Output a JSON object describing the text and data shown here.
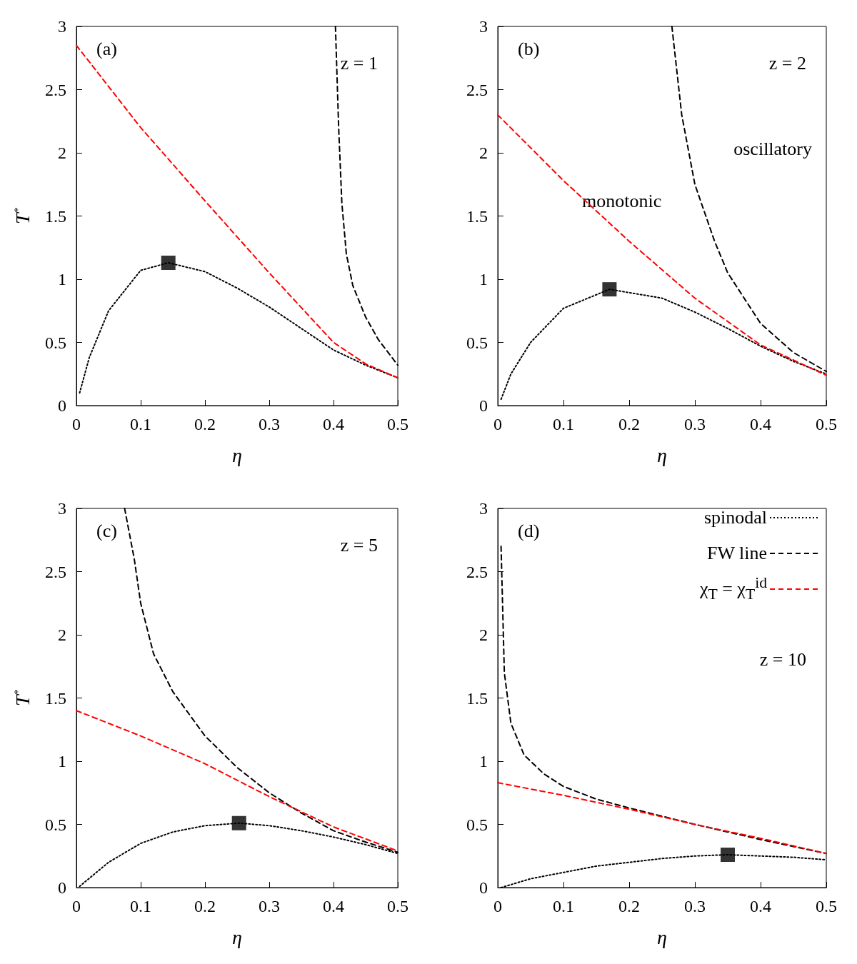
{
  "chart_data": [
    {
      "type": "line",
      "xlabel": "η",
      "ylabel": "T$^{*}$",
      "xlim": [
        0,
        0.5
      ],
      "ylim": [
        0,
        3
      ],
      "xticks": [
        0,
        0.1,
        0.2,
        0.3,
        0.4,
        0.5
      ],
      "yticks": [
        0,
        0.5,
        1,
        1.5,
        2,
        2.5,
        3
      ],
      "grid": false,
      "legend": false,
      "annotations": [
        "(a)",
        "z = 1"
      ],
      "series": [
        {
          "color": "#000000",
          "line_style": "dotted",
          "x": [
            0.005,
            0.02,
            0.05,
            0.1,
            0.143,
            0.2,
            0.25,
            0.3,
            0.35,
            0.4,
            0.45,
            0.5
          ],
          "values": [
            0.1,
            0.38,
            0.75,
            1.07,
            1.13,
            1.06,
            0.93,
            0.78,
            0.61,
            0.44,
            0.32,
            0.22
          ]
        },
        {
          "color": "#000000",
          "line_style": "dashed",
          "x": [
            0.403,
            0.408,
            0.413,
            0.42,
            0.43,
            0.45,
            0.47,
            0.5
          ],
          "values": [
            3,
            2.2,
            1.6,
            1.2,
            0.95,
            0.7,
            0.52,
            0.32
          ]
        },
        {
          "color": "#ff0000",
          "line_style": "dashed",
          "x": [
            0,
            0.1,
            0.2,
            0.3,
            0.4,
            0.45,
            0.5
          ],
          "values": [
            2.85,
            2.2,
            1.62,
            1.05,
            0.5,
            0.33,
            0.22
          ]
        },
        {
          "type": "scatter",
          "marker": "square",
          "color": "#000000",
          "x": [
            0.143
          ],
          "values": [
            1.13
          ]
        }
      ]
    },
    {
      "type": "line",
      "xlabel": "η",
      "xlim": [
        0,
        0.5
      ],
      "ylim": [
        0,
        3
      ],
      "xticks": [
        0,
        0.1,
        0.2,
        0.3,
        0.4,
        0.5
      ],
      "yticks": [
        0,
        0.5,
        1,
        1.5,
        2,
        2.5,
        3
      ],
      "grid": false,
      "legend": false,
      "annotations": [
        "(b)",
        "z = 2",
        "oscillatory",
        "monotonic"
      ],
      "series": [
        {
          "color": "#000000",
          "line_style": "dotted",
          "x": [
            0.005,
            0.02,
            0.05,
            0.1,
            0.17,
            0.25,
            0.3,
            0.35,
            0.4,
            0.45,
            0.5
          ],
          "values": [
            0.05,
            0.25,
            0.5,
            0.77,
            0.92,
            0.85,
            0.74,
            0.61,
            0.47,
            0.35,
            0.25
          ]
        },
        {
          "color": "#000000",
          "line_style": "dashed",
          "x": [
            0.265,
            0.28,
            0.3,
            0.33,
            0.35,
            0.4,
            0.45,
            0.5
          ],
          "values": [
            3,
            2.3,
            1.75,
            1.3,
            1.05,
            0.65,
            0.42,
            0.27
          ]
        },
        {
          "color": "#ff0000",
          "line_style": "dashed",
          "x": [
            0,
            0.1,
            0.2,
            0.3,
            0.4,
            0.5
          ],
          "values": [
            2.3,
            1.78,
            1.3,
            0.85,
            0.48,
            0.24
          ]
        },
        {
          "type": "scatter",
          "marker": "square",
          "color": "#000000",
          "x": [
            0.17
          ],
          "values": [
            0.92
          ]
        }
      ]
    },
    {
      "type": "line",
      "xlabel": "η",
      "ylabel": "T$^{*}$",
      "xlim": [
        0,
        0.5
      ],
      "ylim": [
        0,
        3
      ],
      "xticks": [
        0,
        0.1,
        0.2,
        0.3,
        0.4,
        0.5
      ],
      "yticks": [
        0,
        0.5,
        1,
        1.5,
        2,
        2.5,
        3
      ],
      "grid": false,
      "legend": false,
      "annotations": [
        "(c)",
        "z = 5"
      ],
      "series": [
        {
          "color": "#000000",
          "line_style": "dotted",
          "x": [
            0.005,
            0.05,
            0.1,
            0.15,
            0.2,
            0.253,
            0.3,
            0.35,
            0.4,
            0.45,
            0.5
          ],
          "values": [
            0.01,
            0.2,
            0.35,
            0.44,
            0.49,
            0.51,
            0.49,
            0.45,
            0.4,
            0.34,
            0.27
          ]
        },
        {
          "color": "#000000",
          "line_style": "dashed",
          "x": [
            0.075,
            0.09,
            0.1,
            0.12,
            0.15,
            0.2,
            0.25,
            0.3,
            0.35,
            0.4,
            0.45,
            0.5
          ],
          "values": [
            3,
            2.6,
            2.25,
            1.85,
            1.55,
            1.2,
            0.95,
            0.75,
            0.59,
            0.45,
            0.36,
            0.28
          ]
        },
        {
          "color": "#ff0000",
          "line_style": "dashed",
          "x": [
            0,
            0.1,
            0.2,
            0.3,
            0.4,
            0.5
          ],
          "values": [
            1.4,
            1.2,
            0.98,
            0.72,
            0.48,
            0.29
          ]
        },
        {
          "type": "scatter",
          "marker": "square",
          "color": "#000000",
          "x": [
            0.253
          ],
          "values": [
            0.51
          ]
        }
      ]
    },
    {
      "type": "line",
      "xlabel": "η",
      "xlim": [
        0,
        0.5
      ],
      "ylim": [
        0,
        3
      ],
      "xticks": [
        0,
        0.1,
        0.2,
        0.3,
        0.4,
        0.5
      ],
      "yticks": [
        0,
        0.5,
        1,
        1.5,
        2,
        2.5,
        3
      ],
      "grid": false,
      "legend": "top right",
      "annotations": [
        "(d)",
        "z = 10"
      ],
      "series": [
        {
          "name": "spinodal",
          "color": "#000000",
          "line_style": "dotted",
          "x": [
            0.005,
            0.05,
            0.1,
            0.15,
            0.2,
            0.25,
            0.3,
            0.35,
            0.4,
            0.45,
            0.5
          ],
          "values": [
            0.0,
            0.07,
            0.12,
            0.17,
            0.2,
            0.23,
            0.25,
            0.26,
            0.25,
            0.24,
            0.22
          ]
        },
        {
          "name": "FW line",
          "color": "#000000",
          "line_style": "dashed",
          "x": [
            0.005,
            0.01,
            0.02,
            0.04,
            0.07,
            0.1,
            0.15,
            0.2,
            0.3,
            0.4,
            0.5
          ],
          "values": [
            2.7,
            1.7,
            1.3,
            1.05,
            0.9,
            0.8,
            0.7,
            0.63,
            0.5,
            0.38,
            0.27
          ]
        },
        {
          "name": "χ$_{T}$ = χ$_{T}$$^{id}$",
          "color": "#ff0000",
          "line_style": "dashed",
          "x": [
            0,
            0.1,
            0.2,
            0.3,
            0.4,
            0.5
          ],
          "values": [
            0.83,
            0.73,
            0.62,
            0.5,
            0.39,
            0.27
          ]
        },
        {
          "type": "scatter",
          "marker": "square",
          "color": "#000000",
          "x": [
            0.35
          ],
          "values": [
            0.26
          ]
        }
      ]
    }
  ]
}
